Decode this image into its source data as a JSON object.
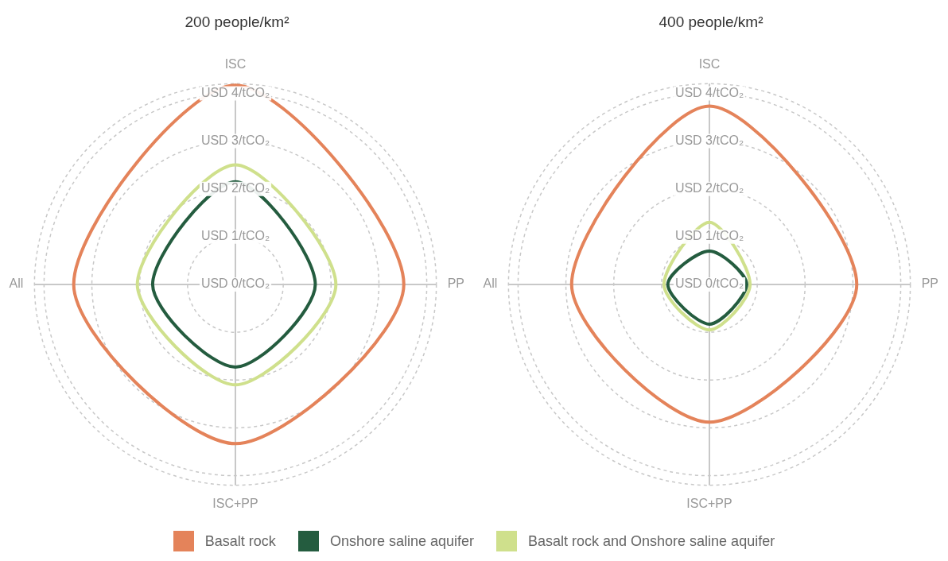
{
  "chart_data": [
    {
      "type": "radar",
      "title": "200 people/km²",
      "categories": [
        "ISC",
        "PP",
        "ISC+PP",
        "All"
      ],
      "series": [
        {
          "name": "Basalt rock",
          "color": "#e4835a",
          "values": [
            4.17,
            3.52,
            3.33,
            3.38
          ]
        },
        {
          "name": "Onshore saline aquifer",
          "color": "#245c3f",
          "values": [
            2.15,
            1.67,
            1.73,
            1.73
          ]
        },
        {
          "name": "Basalt rock and Onshore saline aquifer",
          "color": "#cfe08c",
          "values": [
            2.5,
            2.1,
            2.1,
            2.05
          ]
        }
      ],
      "ylim": [
        0,
        4.2
      ],
      "yticks": [
        {
          "value": 0,
          "label": "USD 0/tCO₂"
        },
        {
          "value": 1,
          "label": "USD 1/tCO₂"
        },
        {
          "value": 2,
          "label": "USD 2/tCO₂"
        },
        {
          "value": 3,
          "label": "USD 3/tCO₂"
        },
        {
          "value": 4,
          "label": "USD 4/tCO₂"
        }
      ],
      "grid": true,
      "marker": "none",
      "line_style": "solid",
      "legend": "bottom"
    },
    {
      "type": "radar",
      "title": "400 people/km²",
      "categories": [
        "ISC",
        "PP",
        "ISC+PP",
        "All"
      ],
      "series": [
        {
          "name": "Basalt rock",
          "color": "#e4835a",
          "values": [
            3.73,
            3.08,
            2.88,
            2.88
          ]
        },
        {
          "name": "Onshore saline aquifer",
          "color": "#245c3f",
          "values": [
            0.7,
            0.78,
            0.83,
            0.87
          ]
        },
        {
          "name": "Basalt rock and Onshore saline aquifer",
          "color": "#cfe08c",
          "values": [
            1.3,
            0.85,
            0.95,
            0.95
          ]
        }
      ],
      "ylim": [
        0,
        4.2
      ],
      "yticks": [
        {
          "value": 0,
          "label": "USD 0/tCO₂"
        },
        {
          "value": 1,
          "label": "USD 1/tCO₂"
        },
        {
          "value": 2,
          "label": "USD 2/tCO₂"
        },
        {
          "value": 3,
          "label": "USD 3/tCO₂"
        },
        {
          "value": 4,
          "label": "USD 4/tCO₂"
        }
      ],
      "grid": true,
      "marker": "none",
      "line_style": "solid"
    }
  ]
}
